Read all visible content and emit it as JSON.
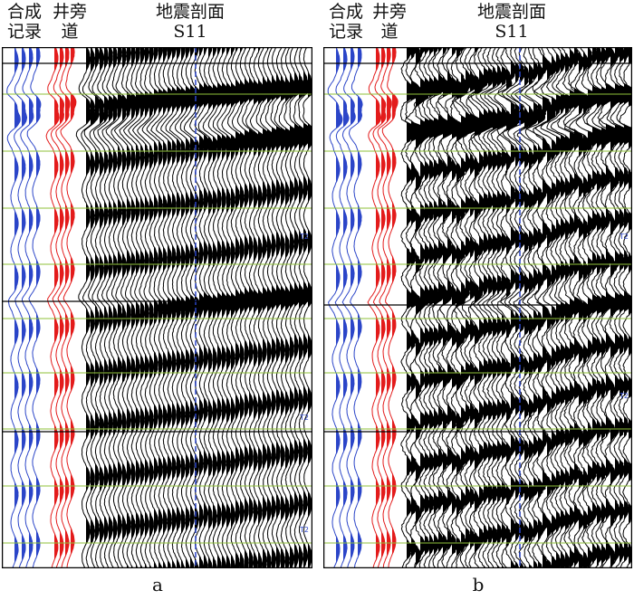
{
  "panels": [
    {
      "id": "a",
      "header": {
        "synthetic": [
          "合成",
          "记录"
        ],
        "well_trace": [
          "井旁",
          "道"
        ],
        "section": [
          "地震剖面",
          "S11"
        ]
      },
      "caption": "a",
      "row_labels": [
        "T2",
        "T2",
        "T2"
      ]
    },
    {
      "id": "b",
      "header": {
        "synthetic": [
          "合成",
          "记录"
        ],
        "well_trace": [
          "井旁",
          "道"
        ],
        "section": [
          "地震剖面",
          "S11"
        ]
      },
      "caption": "b",
      "row_labels": [
        "T2",
        "T2"
      ]
    }
  ],
  "colors": {
    "synthetic": "#2b45c8",
    "well_trace": "#e31b1b",
    "section": "#000000",
    "horizon": "#8fc23a",
    "marker": "#2b45c8"
  }
}
